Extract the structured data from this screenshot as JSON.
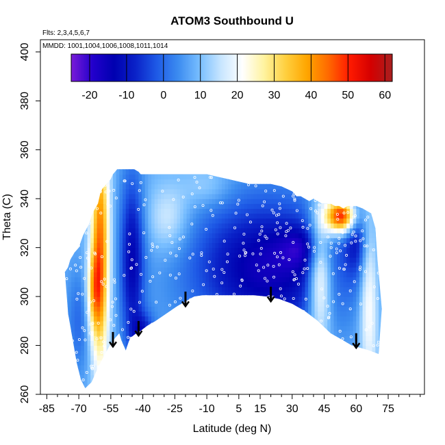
{
  "chart_data": {
    "type": "heatmap",
    "title": "ATOM3 Southbound U",
    "xlabel": "Latitude (deg N)",
    "ylabel": "Theta (C)",
    "xlim": [
      -88,
      92
    ],
    "ylim": [
      260,
      405
    ],
    "x_ticks": [
      -85,
      -70,
      -55,
      -40,
      -25,
      -10,
      5,
      15,
      30,
      45,
      60,
      75
    ],
    "x_tick_labels": [
      "-85",
      "-70",
      "-55",
      "-40",
      "-25",
      "-10",
      "5",
      "15",
      "30",
      "45",
      "60",
      "75"
    ],
    "x_minor_ticks": [
      -80,
      -75,
      -65,
      -60,
      -50,
      -45,
      -35,
      -30,
      -20,
      -15,
      -5,
      0,
      10,
      20,
      25,
      35,
      40,
      50,
      55,
      65,
      70,
      80,
      85,
      90
    ],
    "y_ticks": [
      260,
      280,
      300,
      320,
      340,
      360,
      380,
      400
    ],
    "y_tick_labels": [
      "260",
      "280",
      "300",
      "320",
      "340",
      "360",
      "380",
      "400"
    ],
    "annotations": [
      "Flts: 2,3,4,5,6,7",
      "MMDD: 1001,1004,1006,1008,1011,1014"
    ],
    "colorbar": {
      "range": [
        -25,
        62
      ],
      "ticks": [
        -20,
        -10,
        0,
        10,
        20,
        30,
        40,
        50,
        60
      ],
      "tick_labels": [
        "-20",
        "-10",
        "0",
        "10",
        "20",
        "30",
        "40",
        "50",
        "60"
      ],
      "colors": [
        "#7a1cd8",
        "#2200cc",
        "#0000b0",
        "#0a22c8",
        "#1e5ae6",
        "#3c8cf0",
        "#78beff",
        "#c8e6ff",
        "#ffffff",
        "#fff3a0",
        "#ffd040",
        "#ffa600",
        "#ff6a00",
        "#ff1a00",
        "#d40000",
        "#a82020"
      ]
    },
    "envelope": {
      "lat": [
        -76.5,
        -75,
        -73,
        -71,
        -69,
        -67,
        -64,
        -61,
        -58,
        -55.5,
        -53,
        -51,
        -50,
        -48,
        -46,
        -43,
        -41,
        -38,
        -34,
        -29,
        -24,
        -20,
        -16,
        -12,
        -9,
        -6,
        0,
        6,
        12,
        18,
        24,
        30,
        36,
        42,
        48,
        54,
        58,
        62,
        66,
        70.5,
        72,
        70,
        69,
        67,
        63,
        60,
        58,
        56,
        54,
        52,
        50,
        48,
        46,
        44,
        42,
        40,
        38,
        36,
        34,
        32,
        30,
        25,
        20,
        15,
        10,
        5,
        0,
        -5,
        -10,
        -15,
        -20,
        -25,
        -30,
        -35,
        -36,
        -41,
        -42,
        -44,
        -46,
        -48,
        -50,
        -52,
        -54,
        -55,
        -57,
        -59,
        -60,
        -61,
        -63,
        -64,
        -65,
        -68,
        -70,
        -72,
        -74,
        -75,
        -76.5
      ],
      "theta": [
        310,
        293,
        283,
        273,
        266,
        262.5,
        265,
        271,
        276,
        280,
        283,
        285,
        282,
        278,
        283,
        285,
        286,
        288,
        290,
        293,
        296,
        298,
        300,
        300.5,
        300.5,
        300.5,
        300.5,
        300.5,
        300.5,
        300,
        299,
        297,
        294,
        290,
        285,
        282,
        280,
        279,
        278,
        276.5,
        295,
        315,
        328,
        334,
        336,
        337,
        337,
        337,
        336,
        337,
        337,
        338,
        338,
        338,
        339,
        340,
        339,
        340,
        341,
        341,
        343,
        345,
        346,
        346,
        346,
        347,
        348,
        349,
        350,
        350,
        350,
        350,
        350,
        350,
        350,
        350,
        351,
        352,
        352,
        352,
        352,
        352,
        350,
        348,
        346,
        344,
        342,
        338,
        335,
        333,
        330,
        325,
        320,
        318,
        315,
        312,
        310
      ]
    },
    "field_components": [
      {
        "lat": -60,
        "theta": 320,
        "sx": 3,
        "sy": 35,
        "amp": 36
      },
      {
        "lat": -63,
        "theta": 302,
        "sx": 2.5,
        "sy": 12,
        "amp": 18
      },
      {
        "lat": -45,
        "theta": 315,
        "sx": 4,
        "sy": 25,
        "amp": -20
      },
      {
        "lat": -40,
        "theta": 285,
        "sx": 4,
        "sy": 6,
        "amp": -15
      },
      {
        "lat": -28,
        "theta": 332,
        "sx": 7,
        "sy": 10,
        "amp": 10
      },
      {
        "lat": 18,
        "theta": 312,
        "sx": 25,
        "sy": 20,
        "amp": -24
      },
      {
        "lat": 35,
        "theta": 320,
        "sx": 8,
        "sy": 6,
        "amp": -10
      },
      {
        "lat": 43,
        "theta": 310,
        "sx": 4,
        "sy": 20,
        "amp": 24
      },
      {
        "lat": 53,
        "theta": 333,
        "sx": 5,
        "sy": 5,
        "amp": 48
      },
      {
        "lat": 60,
        "theta": 325,
        "sx": 4,
        "sy": 12,
        "amp": -14
      },
      {
        "lat": 66,
        "theta": 300,
        "sx": 3,
        "sy": 25,
        "amp": 16
      },
      {
        "lat": -10,
        "theta": 345,
        "sx": 8,
        "sy": 6,
        "amp": 6
      },
      {
        "lat": -70,
        "theta": 290,
        "sx": 4,
        "sy": 15,
        "amp": -8
      }
    ],
    "arrows": [
      {
        "lat": -54,
        "theta_start": 285.5,
        "theta_end": 279.5
      },
      {
        "lat": -42,
        "theta_start": 290,
        "theta_end": 284
      },
      {
        "lat": -20,
        "theta_start": 302,
        "theta_end": 296
      },
      {
        "lat": 20,
        "theta_start": 304,
        "theta_end": 298
      },
      {
        "lat": 60,
        "theta_start": 285,
        "theta_end": 279
      }
    ]
  }
}
